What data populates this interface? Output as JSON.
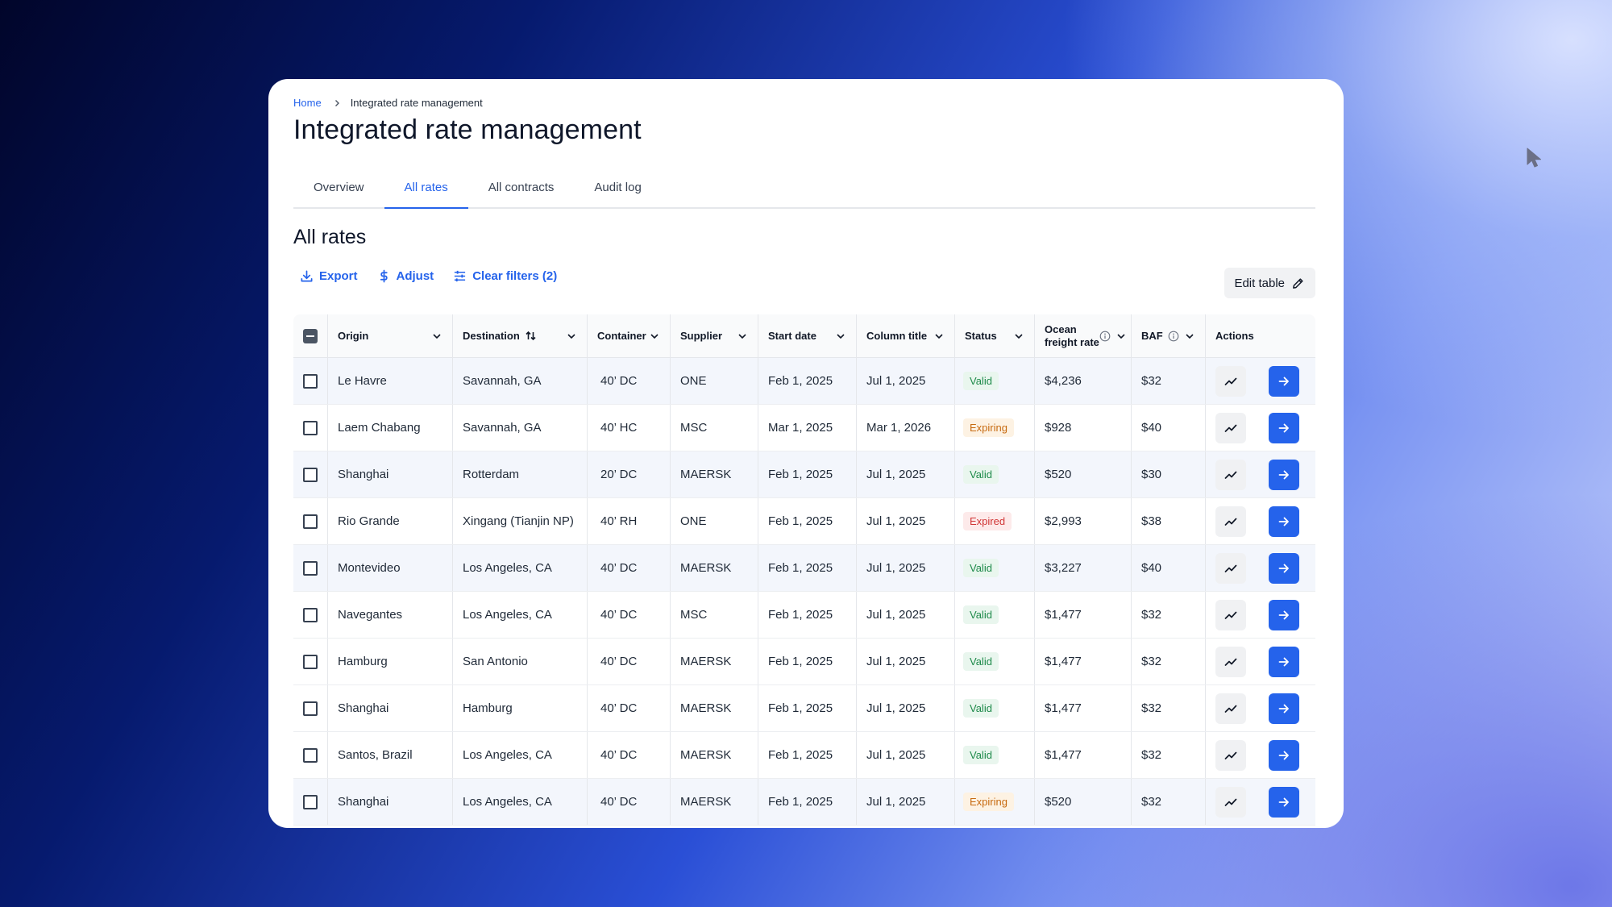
{
  "breadcrumb": {
    "home": "Home",
    "current": "Integrated rate management"
  },
  "page_title": "Integrated rate management",
  "tabs": [
    {
      "label": "Overview",
      "active": false
    },
    {
      "label": "All rates",
      "active": true
    },
    {
      "label": "All contracts",
      "active": false
    },
    {
      "label": "Audit log",
      "active": false
    }
  ],
  "section_title": "All rates",
  "toolbar": {
    "export": "Export",
    "adjust": "Adjust",
    "clear_filters": "Clear filters (2)",
    "edit_table": "Edit table"
  },
  "table": {
    "headers": {
      "origin": "Origin",
      "destination": "Destination",
      "container": "Container",
      "supplier": "Supplier",
      "start_date": "Start date",
      "column_title": "Column title",
      "status": "Status",
      "ocean_freight_rate_1": "Ocean",
      "ocean_freight_rate_2": "freight rate",
      "baf": "BAF",
      "actions": "Actions"
    },
    "rows": [
      {
        "origin": "Le Havre",
        "destination": "Savannah, GA",
        "container": "40’ DC",
        "supplier": "ONE",
        "start_date": "Feb 1, 2025",
        "end_date": "Jul 1, 2025",
        "status": "Valid",
        "rate": "$4,236",
        "baf": "$32"
      },
      {
        "origin": "Laem Chabang",
        "destination": "Savannah, GA",
        "container": "40’ HC",
        "supplier": "MSC",
        "start_date": "Mar 1, 2025",
        "end_date": "Mar 1, 2026",
        "status": "Expiring",
        "rate": "$928",
        "baf": "$40"
      },
      {
        "origin": "Shanghai",
        "destination": "Rotterdam",
        "container": "20’ DC",
        "supplier": "MAERSK",
        "start_date": "Feb 1, 2025",
        "end_date": "Jul 1, 2025",
        "status": "Valid",
        "rate": "$520",
        "baf": "$30"
      },
      {
        "origin": "Rio Grande",
        "destination": "Xingang (Tianjin NP)",
        "container": "40’ RH",
        "supplier": "ONE",
        "start_date": "Feb 1, 2025",
        "end_date": "Jul 1, 2025",
        "status": "Expired",
        "rate": "$2,993",
        "baf": "$38"
      },
      {
        "origin": "Montevideo",
        "destination": "Los Angeles, CA",
        "container": "40’ DC",
        "supplier": "MAERSK",
        "start_date": "Feb 1, 2025",
        "end_date": "Jul 1, 2025",
        "status": "Valid",
        "rate": "$3,227",
        "baf": "$40"
      },
      {
        "origin": "Navegantes",
        "destination": "Los Angeles, CA",
        "container": "40’ DC",
        "supplier": "MSC",
        "start_date": "Feb 1, 2025",
        "end_date": "Jul 1, 2025",
        "status": "Valid",
        "rate": "$1,477",
        "baf": "$32"
      },
      {
        "origin": "Hamburg",
        "destination": "San Antonio",
        "container": "40’ DC",
        "supplier": "MAERSK",
        "start_date": "Feb 1, 2025",
        "end_date": "Jul 1, 2025",
        "status": "Valid",
        "rate": "$1,477",
        "baf": "$32"
      },
      {
        "origin": "Shanghai",
        "destination": "Hamburg",
        "container": "40’ DC",
        "supplier": "MAERSK",
        "start_date": "Feb 1, 2025",
        "end_date": "Jul 1, 2025",
        "status": "Valid",
        "rate": "$1,477",
        "baf": "$32"
      },
      {
        "origin": "Santos, Brazil",
        "destination": "Los Angeles, CA",
        "container": "40’ DC",
        "supplier": "MAERSK",
        "start_date": "Feb 1, 2025",
        "end_date": "Jul 1, 2025",
        "status": "Valid",
        "rate": "$1,477",
        "baf": "$32"
      },
      {
        "origin": "Shanghai",
        "destination": "Los Angeles, CA",
        "container": "40’ DC",
        "supplier": "MAERSK",
        "start_date": "Feb 1, 2025",
        "end_date": "Jul 1, 2025",
        "status": "Expiring",
        "rate": "$520",
        "baf": "$32"
      }
    ]
  },
  "icons": {
    "export": "download-icon",
    "adjust": "dollar-icon",
    "clear_filters": "sliders-icon",
    "edit": "pencil-icon",
    "sort": "sort-arrows-icon",
    "chevron": "chevron-down-icon",
    "info": "info-icon",
    "trend": "trend-chart-icon",
    "go": "arrow-right-icon",
    "cursor": "mouse-pointer-icon"
  },
  "colors": {
    "accent": "#2563eb",
    "valid": "#1e8a4a",
    "expiring": "#c76a10",
    "expired": "#d03535"
  }
}
